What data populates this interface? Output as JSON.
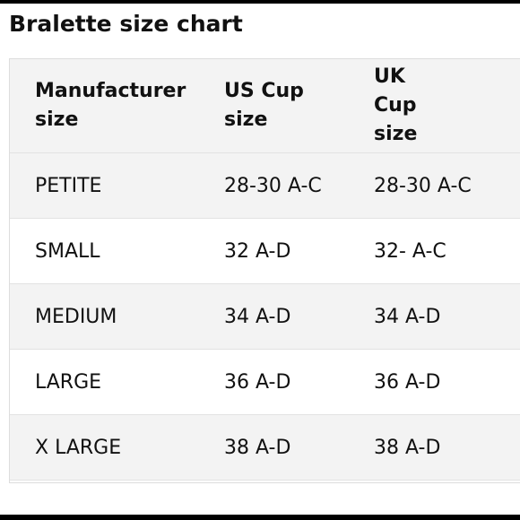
{
  "title": "Bralette size chart",
  "table": {
    "header": [
      "Manufacturer size",
      "US Cup size",
      "UK Cup size"
    ],
    "rows": [
      [
        "PETITE",
        "28-30 A-C",
        "28-30 A-C"
      ],
      [
        "SMALL",
        "32 A-D",
        "32- A-C"
      ],
      [
        "MEDIUM",
        "34 A-D",
        "34 A-D"
      ],
      [
        "LARGE",
        "36 A-D",
        "36 A-D"
      ],
      [
        "X LARGE",
        "38 A-D",
        "38 A-D"
      ]
    ]
  }
}
